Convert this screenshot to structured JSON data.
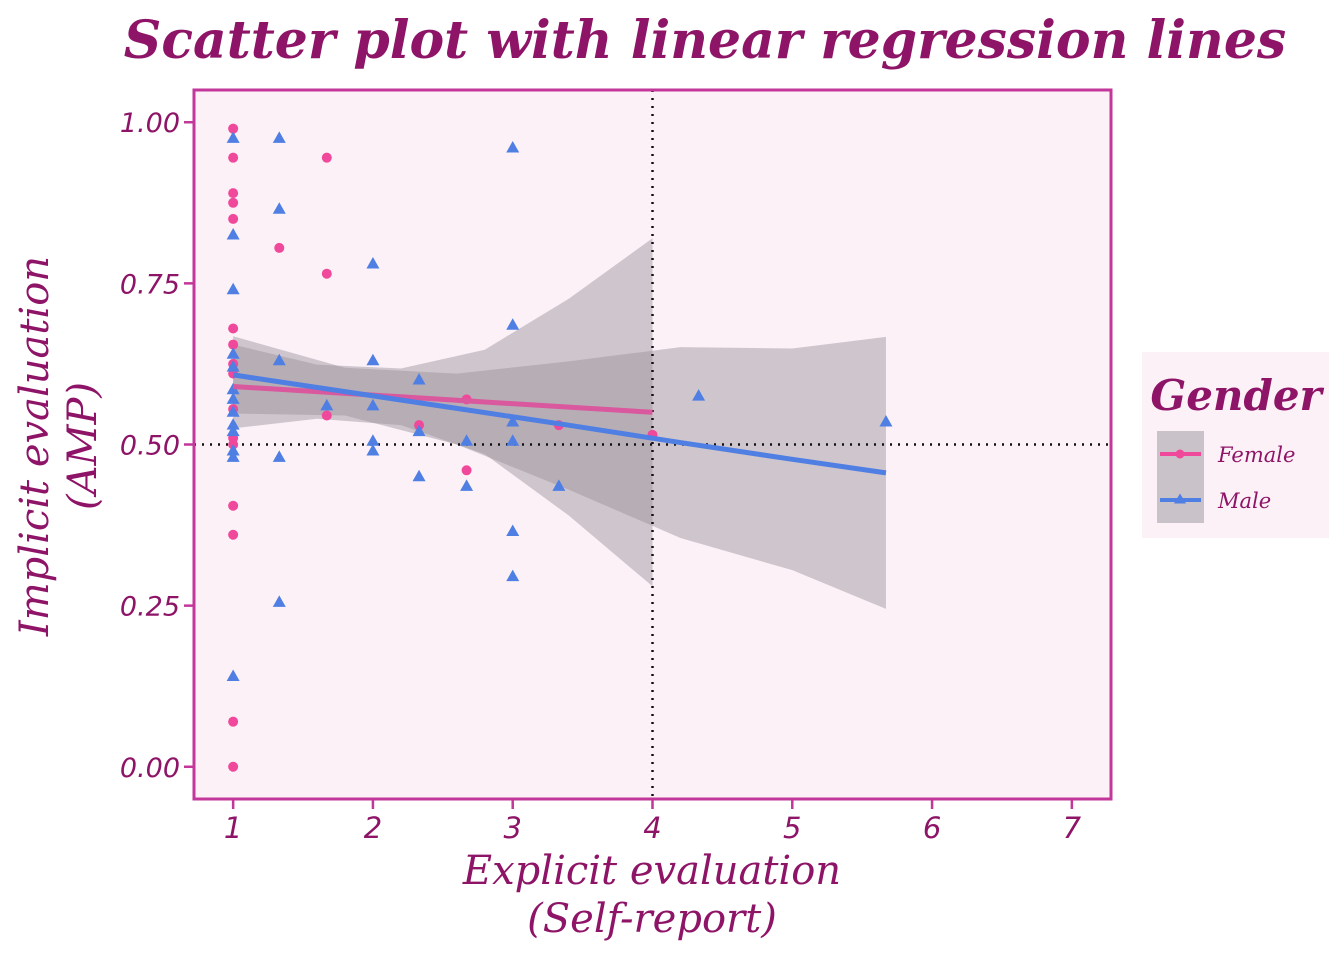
{
  "chart_data": {
    "type": "scatter",
    "title": "Scatter plot with linear regression lines",
    "xlabel": [
      "Explicit evaluation",
      "(Self-report)"
    ],
    "ylabel": [
      "Implicit evaluation",
      "(AMP)"
    ],
    "xlim": [
      0.72,
      7.28
    ],
    "ylim": [
      -0.05,
      1.05
    ],
    "x_ticks": [
      1,
      2,
      3,
      4,
      5,
      6,
      7
    ],
    "y_ticks": [
      0.0,
      0.25,
      0.5,
      0.75,
      1.0
    ],
    "y_tick_labels": [
      "0.00",
      "0.25",
      "0.50",
      "0.75",
      "1.00"
    ],
    "grid": false,
    "reference_lines": {
      "x": 4,
      "y": 0.5
    },
    "legend": {
      "title": "Gender",
      "placement": "right",
      "entries": [
        "Female",
        "Male"
      ]
    },
    "colors": {
      "female": "#f0499b",
      "male": "#4f7fe3",
      "female_line": "#d9589e",
      "male_line": "#4f7fe3",
      "ribbon": "#9a9199",
      "panel_bg": "#fcf1f7",
      "panel_border": "#c3369a",
      "text": "#8e1467"
    },
    "series": [
      {
        "name": "Female",
        "marker": "circle",
        "points": [
          [
            1,
            0.99
          ],
          [
            1,
            0.945
          ],
          [
            1,
            0.89
          ],
          [
            1,
            0.875
          ],
          [
            1,
            0.85
          ],
          [
            1,
            0.68
          ],
          [
            1,
            0.655
          ],
          [
            1,
            0.625
          ],
          [
            1,
            0.61
          ],
          [
            1,
            0.555
          ],
          [
            1,
            0.51
          ],
          [
            1,
            0.5
          ],
          [
            1,
            0.405
          ],
          [
            1,
            0.36
          ],
          [
            1,
            0.07
          ],
          [
            1,
            0.0
          ],
          [
            1.33,
            0.805
          ],
          [
            1.67,
            0.945
          ],
          [
            1.67,
            0.765
          ],
          [
            1.67,
            0.545
          ],
          [
            2.33,
            0.53
          ],
          [
            2.67,
            0.57
          ],
          [
            2.67,
            0.46
          ],
          [
            3.33,
            0.53
          ],
          [
            4,
            0.515
          ]
        ],
        "fit": {
          "x": [
            1.0,
            1.6,
            2.2,
            2.8,
            3.4,
            4.0
          ],
          "y": [
            0.59,
            0.582,
            0.574,
            0.566,
            0.558,
            0.55
          ],
          "lower": [
            0.525,
            0.54,
            0.53,
            0.485,
            0.39,
            0.28
          ],
          "upper": [
            0.655,
            0.624,
            0.618,
            0.647,
            0.726,
            0.82
          ]
        }
      },
      {
        "name": "Male",
        "marker": "triangle",
        "points": [
          [
            1,
            0.975
          ],
          [
            1,
            0.825
          ],
          [
            1,
            0.74
          ],
          [
            1,
            0.64
          ],
          [
            1,
            0.62
          ],
          [
            1,
            0.585
          ],
          [
            1,
            0.57
          ],
          [
            1,
            0.55
          ],
          [
            1,
            0.53
          ],
          [
            1,
            0.52
          ],
          [
            1,
            0.49
          ],
          [
            1,
            0.48
          ],
          [
            1,
            0.14
          ],
          [
            1.33,
            0.975
          ],
          [
            1.33,
            0.865
          ],
          [
            1.33,
            0.63
          ],
          [
            1.33,
            0.48
          ],
          [
            1.33,
            0.255
          ],
          [
            1.67,
            0.56
          ],
          [
            2,
            0.78
          ],
          [
            2,
            0.63
          ],
          [
            2,
            0.56
          ],
          [
            2,
            0.505
          ],
          [
            2,
            0.49
          ],
          [
            2.33,
            0.6
          ],
          [
            2.33,
            0.52
          ],
          [
            2.33,
            0.45
          ],
          [
            2.67,
            0.505
          ],
          [
            2.67,
            0.435
          ],
          [
            3,
            0.96
          ],
          [
            3,
            0.685
          ],
          [
            3,
            0.535
          ],
          [
            3,
            0.505
          ],
          [
            3,
            0.365
          ],
          [
            3,
            0.295
          ],
          [
            3.33,
            0.435
          ],
          [
            4.33,
            0.575
          ],
          [
            5.67,
            0.535
          ]
        ],
        "fit": {
          "x": [
            1.0,
            1.8,
            2.6,
            3.4,
            4.2,
            5.0,
            5.67
          ],
          "y": [
            0.608,
            0.582,
            0.556,
            0.53,
            0.503,
            0.477,
            0.456
          ],
          "lower": [
            0.548,
            0.545,
            0.5,
            0.43,
            0.355,
            0.305,
            0.245
          ],
          "upper": [
            0.668,
            0.619,
            0.61,
            0.629,
            0.651,
            0.649,
            0.667
          ]
        }
      }
    ]
  }
}
